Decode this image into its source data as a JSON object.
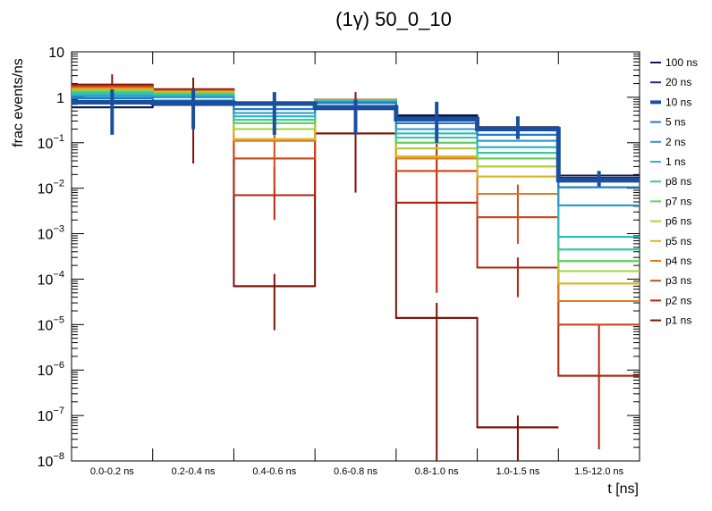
{
  "chart_data": {
    "type": "step-histogram",
    "title": "(1γ) 50_0_10",
    "xlabel": "t [ns]",
    "ylabel": "frac events/ns",
    "yscale": "log",
    "ylim": [
      1e-08,
      10
    ],
    "y_ticks": [
      {
        "base": "10",
        "exp": "",
        "value": 10
      },
      {
        "base": "1",
        "exp": "",
        "value": 1
      },
      {
        "base": "10",
        "exp": "−1",
        "value": 0.1
      },
      {
        "base": "10",
        "exp": "−2",
        "value": 0.01
      },
      {
        "base": "10",
        "exp": "−3",
        "value": 0.001
      },
      {
        "base": "10",
        "exp": "−4",
        "value": 0.0001
      },
      {
        "base": "10",
        "exp": "−5",
        "value": 1e-05
      },
      {
        "base": "10",
        "exp": "−6",
        "value": 1e-06
      },
      {
        "base": "10",
        "exp": "−7",
        "value": 1e-07
      },
      {
        "base": "10",
        "exp": "−8",
        "value": 1e-08
      }
    ],
    "categories": [
      "0.0-0.2 ns",
      "0.2-0.4 ns",
      "0.4-0.6 ns",
      "0.6-0.8 ns",
      "0.8-1.0 ns",
      "1.0-1.5 ns",
      "1.5-12.0 ns"
    ],
    "series": [
      {
        "name": "100 ns",
        "color": "#0b1a4a",
        "width": 2,
        "values": [
          0.6,
          0.68,
          0.7,
          0.55,
          0.4,
          0.22,
          0.019
        ],
        "err_lo": [
          null,
          null,
          null,
          null,
          null,
          null,
          null
        ],
        "err_hi": [
          null,
          null,
          null,
          null,
          null,
          null,
          null
        ]
      },
      {
        "name": "20 ns",
        "color": "#15307a",
        "width": 2,
        "values": [
          0.75,
          0.8,
          0.74,
          0.6,
          0.37,
          0.21,
          0.017
        ],
        "err_lo": [
          null,
          null,
          null,
          null,
          null,
          null,
          null
        ],
        "err_hi": [
          null,
          null,
          null,
          null,
          null,
          null,
          null
        ]
      },
      {
        "name": "10 ns",
        "color": "#1a4fa0",
        "width": 5,
        "values": [
          0.78,
          0.75,
          0.73,
          0.6,
          0.33,
          0.2,
          0.015
        ],
        "err_lo": [
          0.15,
          0.2,
          0.15,
          0.15,
          0.1,
          0.12,
          0.011
        ],
        "err_hi": [
          1.5,
          1.5,
          1.3,
          0.9,
          0.8,
          0.38,
          0.024
        ]
      },
      {
        "name": "5 ns",
        "color": "#1f79c9",
        "width": 2,
        "values": [
          0.95,
          0.85,
          0.55,
          0.75,
          0.27,
          0.15,
          0.0105
        ],
        "err_lo": [
          null,
          null,
          null,
          null,
          null,
          null,
          null
        ],
        "err_hi": [
          null,
          null,
          null,
          null,
          null,
          null,
          null
        ]
      },
      {
        "name": "2 ns",
        "color": "#2b97cc",
        "width": 2,
        "values": [
          1.05,
          1.0,
          0.45,
          0.78,
          0.2,
          0.11,
          0.0042
        ],
        "err_lo": [
          null,
          null,
          null,
          null,
          null,
          null,
          null
        ],
        "err_hi": [
          null,
          null,
          null,
          null,
          null,
          null,
          null
        ]
      },
      {
        "name": "1 ns",
        "color": "#2bb8c2",
        "width": 2,
        "values": [
          1.15,
          1.08,
          0.38,
          0.8,
          0.16,
          0.08,
          0.00085
        ],
        "err_lo": [
          null,
          null,
          null,
          null,
          null,
          null,
          null
        ],
        "err_hi": [
          null,
          null,
          null,
          null,
          null,
          null,
          null
        ]
      },
      {
        "name": "p8 ns",
        "color": "#3ac79c",
        "width": 2,
        "values": [
          1.25,
          1.15,
          0.32,
          0.82,
          0.13,
          0.06,
          0.00045
        ],
        "err_lo": [
          null,
          null,
          null,
          null,
          null,
          null,
          null
        ],
        "err_hi": [
          null,
          null,
          null,
          null,
          null,
          null,
          null
        ]
      },
      {
        "name": "p7 ns",
        "color": "#5fcf62",
        "width": 2,
        "values": [
          1.32,
          1.2,
          0.27,
          0.83,
          0.1,
          0.045,
          0.00025
        ],
        "err_lo": [
          null,
          null,
          null,
          null,
          null,
          null,
          null
        ],
        "err_hi": [
          null,
          null,
          null,
          null,
          null,
          null,
          null
        ]
      },
      {
        "name": "p6 ns",
        "color": "#a9cf38",
        "width": 2,
        "values": [
          1.4,
          1.25,
          0.2,
          0.84,
          0.075,
          0.03,
          0.00015
        ],
        "err_lo": [
          null,
          null,
          null,
          null,
          null,
          null,
          null
        ],
        "err_hi": [
          null,
          null,
          null,
          null,
          null,
          null,
          null
        ]
      },
      {
        "name": "p5 ns",
        "color": "#d6b62a",
        "width": 2,
        "values": [
          1.5,
          1.3,
          0.12,
          0.85,
          0.05,
          0.018,
          8e-05
        ],
        "err_lo": [
          null,
          null,
          null,
          null,
          null,
          null,
          null
        ],
        "err_hi": [
          null,
          null,
          null,
          null,
          null,
          null,
          null
        ]
      },
      {
        "name": "p4 ns",
        "color": "#e07a1c",
        "width": 2,
        "values": [
          1.6,
          1.35,
          0.11,
          0.87,
          0.045,
          0.0075,
          3.3e-05
        ],
        "err_lo": [
          null,
          null,
          null,
          null,
          null,
          null,
          null
        ],
        "err_hi": [
          null,
          null,
          null,
          null,
          null,
          null,
          null
        ]
      },
      {
        "name": "p3 ns",
        "color": "#cf4a18",
        "width": 2,
        "values": [
          1.7,
          1.4,
          0.045,
          0.88,
          0.024,
          0.0023,
          1e-05
        ],
        "err_lo": [
          null,
          null,
          0.01,
          null,
          null,
          0.0006,
          null
        ],
        "err_hi": [
          null,
          null,
          0.2,
          null,
          null,
          0.012,
          null
        ]
      },
      {
        "name": "p2 ns",
        "color": "#b1260f",
        "width": 2,
        "values": [
          1.8,
          1.45,
          0.007,
          0.89,
          0.0048,
          0.00018,
          7.5e-07
        ],
        "err_lo": [
          null,
          null,
          0.002,
          null,
          5e-05,
          4e-05,
          1.8e-08
        ],
        "err_hi": [
          null,
          null,
          0.03,
          null,
          0.1,
          0.0003,
          1e-05
        ]
      },
      {
        "name": "p1 ns",
        "color": "#7d1108",
        "width": 2,
        "values": [
          1.9,
          1.5,
          7e-05,
          0.16,
          1.4e-05,
          5.5e-08,
          null
        ],
        "err_lo": [
          0.8,
          0.035,
          7.5e-06,
          0.008,
          1e-08,
          1e-08,
          null
        ],
        "err_hi": [
          3.2,
          2.7,
          0.00013,
          1.3,
          3e-05,
          1e-07,
          null
        ]
      }
    ]
  }
}
